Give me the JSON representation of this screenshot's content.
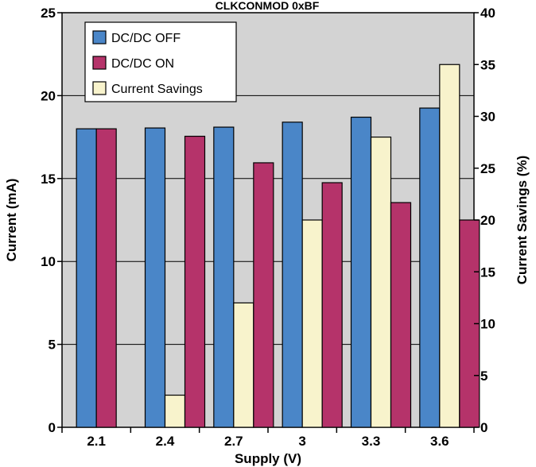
{
  "chart_data": {
    "type": "bar",
    "title": "CLKCONMOD 0xBF",
    "xlabel": "Supply (V)",
    "ylabel": "Current (mA)",
    "y2label": "Current Savings (%)",
    "categories": [
      "2.1",
      "2.4",
      "2.7",
      "3",
      "3.3",
      "3.6"
    ],
    "ylim": [
      0,
      25
    ],
    "y2lim": [
      0,
      40
    ],
    "yticks": [
      "0",
      "5",
      "10",
      "15",
      "20",
      "25"
    ],
    "y2ticks": [
      "0",
      "5",
      "10",
      "15",
      "20",
      "25",
      "30",
      "35",
      "40"
    ],
    "grid": true,
    "legend_position": "top-left",
    "series": [
      {
        "name": "DC/DC OFF",
        "axis": "left",
        "color": "#4a86c8",
        "values": [
          18.0,
          18.05,
          18.1,
          18.4,
          18.7,
          19.25
        ]
      },
      {
        "name": "DC/DC ON",
        "axis": "left",
        "color": "#b5336a",
        "values": [
          18.0,
          17.55,
          15.95,
          14.75,
          13.55,
          12.5
        ]
      },
      {
        "name": "Current Savings",
        "axis": "right",
        "color": "#f8f3cc",
        "values": [
          0,
          3.1,
          12.0,
          20.0,
          28.0,
          35.0
        ]
      }
    ],
    "plot_background": "#d3d3d3"
  }
}
